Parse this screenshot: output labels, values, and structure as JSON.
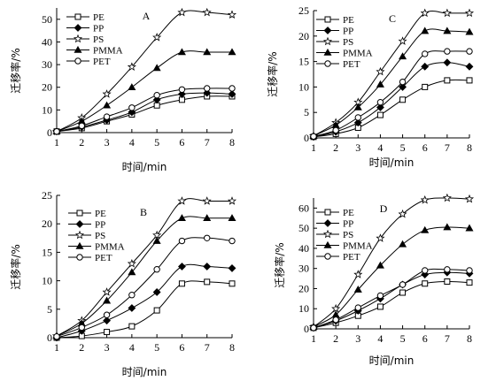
{
  "chart_data": [
    {
      "type": "line",
      "title": "A",
      "xlabel": "时间/min",
      "ylabel": "迁移率/%",
      "x": [
        1,
        2,
        3,
        4,
        5,
        6,
        7,
        8
      ],
      "xlim": [
        1,
        8
      ],
      "ylim": [
        0,
        55
      ],
      "xticks": [
        1,
        2,
        3,
        4,
        5,
        6,
        7,
        8
      ],
      "yticks": [
        0,
        10,
        20,
        30,
        40,
        50
      ],
      "legend_position": "top-left",
      "series": [
        {
          "name": "PE",
          "marker": "open-square",
          "values": [
            0.5,
            2.0,
            5.0,
            8.0,
            12.0,
            14.5,
            16.0,
            16.0
          ]
        },
        {
          "name": "PP",
          "marker": "filled-diamond",
          "values": [
            0.5,
            2.5,
            5.5,
            9.0,
            14.5,
            17.0,
            17.5,
            17.0
          ]
        },
        {
          "name": "PS",
          "marker": "open-star",
          "values": [
            0.5,
            6.5,
            17.0,
            29.0,
            42.0,
            53.0,
            53.0,
            52.0
          ]
        },
        {
          "name": "PMMA",
          "marker": "filled-triangle",
          "values": [
            0.5,
            5.0,
            12.0,
            20.0,
            28.5,
            35.5,
            35.5,
            35.5
          ]
        },
        {
          "name": "PET",
          "marker": "open-circle",
          "values": [
            0.5,
            3.0,
            7.0,
            11.0,
            16.5,
            19.0,
            19.5,
            19.5
          ]
        }
      ]
    },
    {
      "type": "line",
      "title": "C",
      "xlabel": "时间/min",
      "ylabel": "迁移率/%",
      "x": [
        1,
        2,
        3,
        4,
        5,
        6,
        7,
        8
      ],
      "xlim": [
        1,
        8
      ],
      "ylim": [
        0,
        25
      ],
      "xticks": [
        1,
        2,
        3,
        4,
        5,
        6,
        7,
        8
      ],
      "yticks": [
        0,
        5,
        10,
        15,
        20,
        25
      ],
      "legend_position": "top-left",
      "series": [
        {
          "name": "PE",
          "marker": "open-square",
          "values": [
            0.2,
            0.8,
            2.0,
            4.5,
            7.5,
            10.0,
            11.3,
            11.3
          ]
        },
        {
          "name": "PP",
          "marker": "filled-diamond",
          "values": [
            0.2,
            1.2,
            3.0,
            6.0,
            10.0,
            14.0,
            14.8,
            14.0
          ]
        },
        {
          "name": "PS",
          "marker": "open-star",
          "values": [
            0.4,
            3.0,
            7.0,
            13.0,
            19.0,
            24.5,
            24.5,
            24.5
          ]
        },
        {
          "name": "PMMA",
          "marker": "filled-triangle",
          "values": [
            0.4,
            2.5,
            6.0,
            10.5,
            16.0,
            21.0,
            21.0,
            20.8
          ]
        },
        {
          "name": "PET",
          "marker": "open-circle",
          "values": [
            0.3,
            1.5,
            4.0,
            7.0,
            11.0,
            16.5,
            17.0,
            17.0
          ]
        }
      ]
    },
    {
      "type": "line",
      "title": "B",
      "xlabel": "时间/min",
      "ylabel": "迁移率/%",
      "x": [
        1,
        2,
        3,
        4,
        5,
        6,
        7,
        8
      ],
      "xlim": [
        1,
        8
      ],
      "ylim": [
        0,
        25
      ],
      "xticks": [
        1,
        2,
        3,
        4,
        5,
        6,
        7,
        8
      ],
      "yticks": [
        0,
        5,
        10,
        15,
        20,
        25
      ],
      "legend_position": "top-left",
      "series": [
        {
          "name": "PE",
          "marker": "open-square",
          "values": [
            0.0,
            0.3,
            1.0,
            2.0,
            4.8,
            9.5,
            9.8,
            9.5
          ]
        },
        {
          "name": "PP",
          "marker": "filled-diamond",
          "values": [
            0.0,
            1.2,
            3.0,
            5.2,
            8.0,
            12.5,
            12.5,
            12.2
          ]
        },
        {
          "name": "PS",
          "marker": "open-star",
          "values": [
            0.3,
            3.0,
            8.0,
            13.0,
            18.0,
            24.0,
            24.0,
            24.0
          ]
        },
        {
          "name": "PMMA",
          "marker": "filled-triangle",
          "values": [
            0.3,
            2.5,
            6.5,
            11.5,
            17.0,
            21.0,
            21.0,
            21.0
          ]
        },
        {
          "name": "PET",
          "marker": "open-circle",
          "values": [
            0.2,
            1.8,
            4.0,
            7.5,
            12.0,
            17.0,
            17.5,
            17.0
          ]
        }
      ]
    },
    {
      "type": "line",
      "title": "D",
      "xlabel": "时间/min",
      "ylabel": "迁移率/%",
      "x": [
        1,
        2,
        3,
        4,
        5,
        6,
        7,
        8
      ],
      "xlim": [
        1,
        8
      ],
      "ylim": [
        0,
        65
      ],
      "xticks": [
        1,
        2,
        3,
        4,
        5,
        6,
        7,
        8
      ],
      "yticks": [
        0,
        10,
        20,
        30,
        40,
        50,
        60
      ],
      "legend_position": "top-left",
      "series": [
        {
          "name": "PE",
          "marker": "open-square",
          "values": [
            0.5,
            3.0,
            6.5,
            11.0,
            18.0,
            22.5,
            23.5,
            23.0
          ]
        },
        {
          "name": "PP",
          "marker": "filled-diamond",
          "values": [
            0.5,
            4.0,
            9.0,
            15.0,
            22.0,
            27.0,
            28.0,
            27.5
          ]
        },
        {
          "name": "PS",
          "marker": "open-star",
          "values": [
            1.0,
            10.0,
            27.0,
            45.0,
            57.0,
            64.0,
            65.0,
            64.5
          ]
        },
        {
          "name": "PMMA",
          "marker": "filled-triangle",
          "values": [
            1.0,
            7.0,
            19.5,
            31.5,
            42.0,
            49.0,
            50.5,
            50.0
          ]
        },
        {
          "name": "PET",
          "marker": "open-circle",
          "values": [
            0.5,
            4.5,
            10.5,
            16.5,
            22.0,
            29.0,
            29.5,
            29.0
          ]
        }
      ]
    }
  ]
}
